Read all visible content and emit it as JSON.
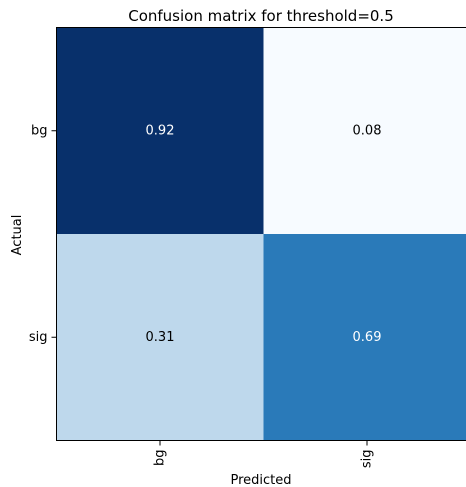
{
  "chart_data": {
    "type": "heatmap",
    "title": "Confusion matrix for threshold=0.5",
    "xlabel": "Predicted",
    "ylabel": "Actual",
    "x_categories": [
      "bg",
      "sig"
    ],
    "y_categories": [
      "bg",
      "sig"
    ],
    "values": [
      [
        0.92,
        0.08
      ],
      [
        0.31,
        0.69
      ]
    ],
    "value_labels": [
      [
        "0.92",
        "0.08"
      ],
      [
        "0.31",
        "0.69"
      ]
    ],
    "colormap": "Blues",
    "color_range": [
      0.08,
      0.92
    ],
    "cell_colors": [
      [
        "#08306b",
        "#f7fbff"
      ],
      [
        "#bed8ec",
        "#2a7ab9"
      ]
    ],
    "text_colors": [
      [
        "#ffffff",
        "#000000"
      ],
      [
        "#000000",
        "#ffffff"
      ]
    ],
    "x_tick_rotation": 90,
    "grid": false
  }
}
